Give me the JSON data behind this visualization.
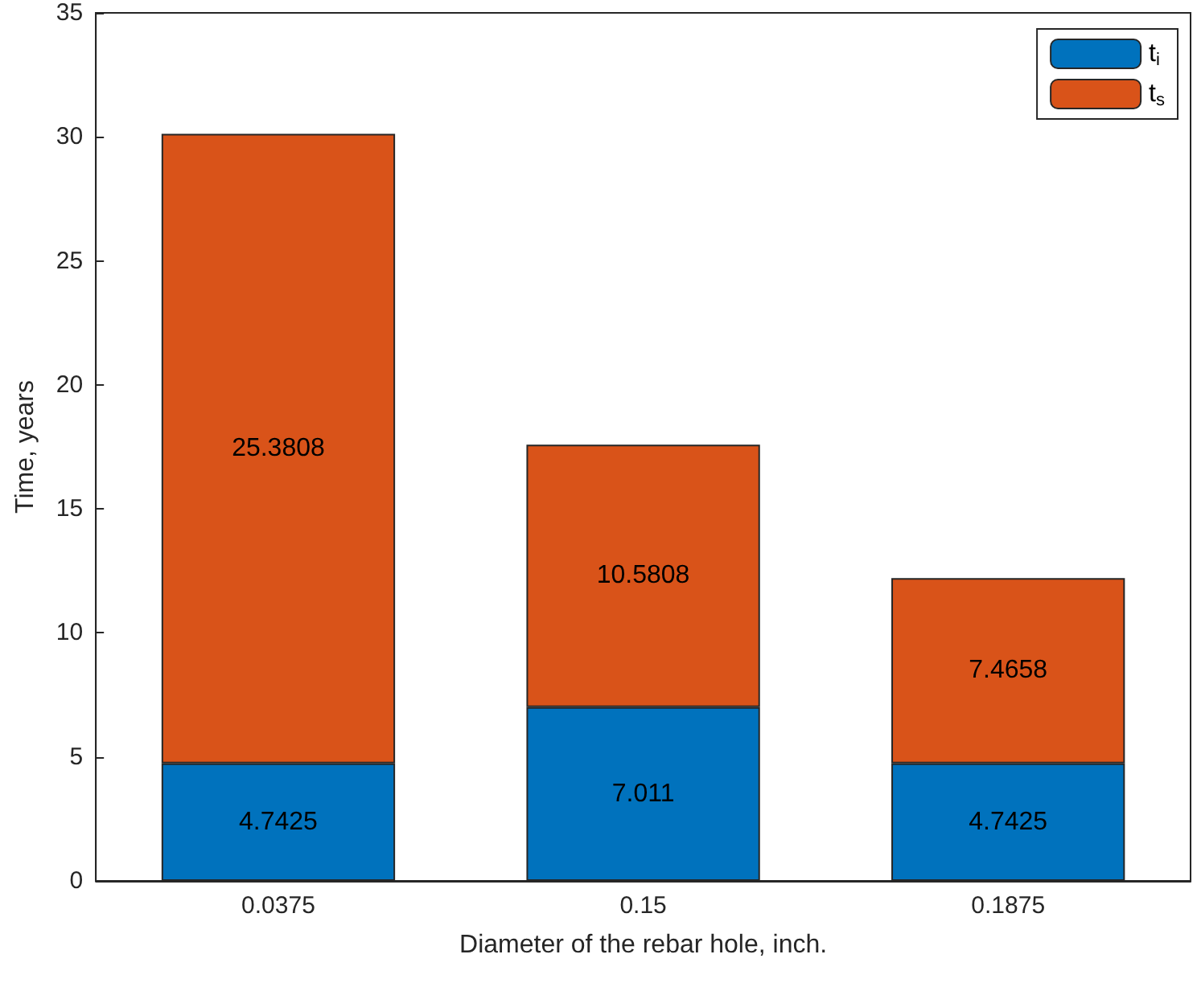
{
  "chart_data": {
    "type": "bar",
    "xlabel": "Diameter of the rebar hole, inch.",
    "ylabel": "Time, years",
    "categories": [
      "0.0375",
      "0.15",
      "0.1875"
    ],
    "series": [
      {
        "name": "t$_{i}$",
        "color": "#0072bd",
        "values": [
          4.7425,
          7.011,
          4.7425
        ]
      },
      {
        "name": "t$_{s}$",
        "color": "#d95319",
        "values": [
          25.3808,
          10.5808,
          7.4658
        ]
      }
    ],
    "stacked": true,
    "data_labels": true,
    "ylim": [
      0,
      35
    ],
    "yticks": [
      0,
      5,
      10,
      15,
      20,
      25,
      30,
      35
    ],
    "grid": false,
    "legend": "top right"
  }
}
